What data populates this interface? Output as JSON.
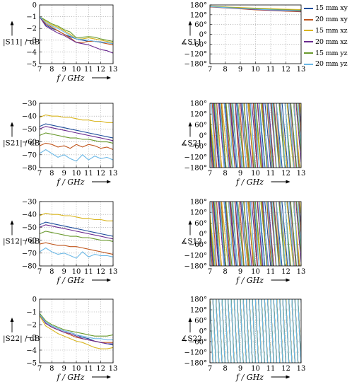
{
  "legend": [
    {
      "label": "15 mm xy",
      "color": "#1f4e9c"
    },
    {
      "label": "20 mm xy",
      "color": "#c0561d"
    },
    {
      "label": "15 mm xz",
      "color": "#d9b51f"
    },
    {
      "label": "20 mm xz",
      "color": "#6a2a8f"
    },
    {
      "label": "15 mm yz",
      "color": "#6a9a2e"
    },
    {
      "label": "20 mm yz",
      "color": "#6cb8e6"
    }
  ],
  "chart_data": [
    {
      "type": "line",
      "id": "s11_mag",
      "ylabel": "|S11| / dB",
      "xlabel": "f / GHz",
      "xlim": [
        7,
        13
      ],
      "ylim": [
        -5,
        0
      ],
      "grid": true,
      "xticks": [
        "7",
        "8",
        "9",
        "10",
        "11",
        "12",
        "13"
      ],
      "yticks": [
        "0",
        "−1",
        "−2",
        "−3",
        "−4",
        "−5"
      ],
      "x": [
        7,
        7.5,
        8,
        8.5,
        9,
        9.5,
        10,
        10.5,
        11,
        11.5,
        12,
        12.5,
        13
      ],
      "series": [
        {
          "name": "15 mm xy",
          "values": [
            -1.0,
            -1.7,
            -2.0,
            -2.2,
            -2.5,
            -2.7,
            -2.9,
            -3.0,
            -3.1,
            -3.1,
            -3.15,
            -3.2,
            -3.3
          ]
        },
        {
          "name": "20 mm xy",
          "values": [
            -1.0,
            -1.6,
            -1.9,
            -2.2,
            -2.5,
            -2.8,
            -3.2,
            -3.2,
            -3.1,
            -3.1,
            -3.2,
            -3.3,
            -3.4
          ]
        },
        {
          "name": "15 mm xz",
          "values": [
            -1.0,
            -1.4,
            -1.7,
            -1.9,
            -2.2,
            -2.5,
            -2.9,
            -2.9,
            -2.8,
            -2.9,
            -3.0,
            -3.1,
            -3.2
          ]
        },
        {
          "name": "20 mm xz",
          "values": [
            -1.0,
            -1.8,
            -2.1,
            -2.4,
            -2.6,
            -2.9,
            -3.2,
            -3.3,
            -3.4,
            -3.6,
            -3.8,
            -3.9,
            -4.1
          ]
        },
        {
          "name": "15 mm yz",
          "values": [
            -1.0,
            -1.3,
            -1.6,
            -1.8,
            -2.1,
            -2.3,
            -2.8,
            -2.75,
            -2.7,
            -2.75,
            -2.9,
            -3.0,
            -3.1
          ]
        },
        {
          "name": "20 mm yz",
          "values": [
            -1.0,
            -1.5,
            -1.8,
            -2.0,
            -2.3,
            -2.6,
            -2.9,
            -2.95,
            -3.0,
            -3.1,
            -3.2,
            -3.2,
            -3.3
          ]
        }
      ]
    },
    {
      "type": "line",
      "id": "s11_phase",
      "ylabel": "∡S11",
      "xlabel": "",
      "xlim": [
        7,
        13
      ],
      "ylim": [
        -180,
        180
      ],
      "grid": true,
      "xticks": [
        "7",
        "8",
        "9",
        "10",
        "11",
        "12",
        "13"
      ],
      "yticks": [
        "180°",
        "120°",
        "60°",
        "0°",
        "−60°",
        "−120°",
        "−180°"
      ],
      "x": [
        7,
        8,
        9,
        10,
        11,
        12,
        13
      ],
      "series": [
        {
          "name": "15 mm xy",
          "values": [
            170,
            165,
            160,
            155,
            150,
            148,
            145
          ]
        },
        {
          "name": "20 mm xy",
          "values": [
            168,
            162,
            156,
            150,
            146,
            142,
            138
          ]
        },
        {
          "name": "15 mm xz",
          "values": [
            172,
            168,
            164,
            160,
            157,
            154,
            152
          ]
        },
        {
          "name": "20 mm xz",
          "values": [
            169,
            163,
            158,
            152,
            148,
            145,
            141
          ]
        },
        {
          "name": "15 mm yz",
          "values": [
            171,
            166,
            161,
            157,
            153,
            150,
            147
          ]
        },
        {
          "name": "20 mm yz",
          "values": [
            170,
            164,
            159,
            154,
            150,
            147,
            143
          ]
        }
      ]
    },
    {
      "type": "line",
      "id": "s21_mag",
      "ylabel": "|S21| / dB",
      "xlabel": "f / GHz",
      "xlim": [
        7,
        13
      ],
      "ylim": [
        -80,
        -30
      ],
      "grid": true,
      "xticks": [
        "7",
        "8",
        "9",
        "10",
        "11",
        "12",
        "13"
      ],
      "yticks": [
        "−30",
        "−40",
        "−50",
        "−60",
        "−70",
        "−80"
      ],
      "x": [
        7,
        7.5,
        8,
        8.5,
        9,
        9.5,
        10,
        10.5,
        11,
        11.5,
        12,
        12.5,
        13
      ],
      "series": [
        {
          "name": "15 mm xy",
          "values": [
            -48,
            -46,
            -47,
            -48,
            -49,
            -50,
            -51,
            -52,
            -53,
            -54,
            -55,
            -56,
            -57
          ]
        },
        {
          "name": "20 mm xy",
          "values": [
            -63,
            -61,
            -62,
            -64,
            -63,
            -65,
            -62,
            -64,
            -62,
            -63,
            -65,
            -64,
            -66
          ]
        },
        {
          "name": "15 mm xz",
          "values": [
            -41,
            -39,
            -40,
            -40,
            -41,
            -41,
            -42,
            -43,
            -43,
            -44,
            -44,
            -45,
            -45
          ]
        },
        {
          "name": "20 mm xz",
          "values": [
            -50,
            -48,
            -49,
            -50,
            -51,
            -52,
            -53,
            -54,
            -55,
            -56,
            -57,
            -58,
            -59
          ]
        },
        {
          "name": "15 mm yz",
          "values": [
            -55,
            -53,
            -54,
            -55,
            -56,
            -57,
            -57,
            -58,
            -58,
            -59,
            -60,
            -60,
            -61
          ]
        },
        {
          "name": "20 mm yz",
          "values": [
            -69,
            -66,
            -69,
            -72,
            -70,
            -73,
            -75,
            -70,
            -74,
            -71,
            -73,
            -72,
            -74
          ]
        }
      ]
    },
    {
      "type": "line",
      "id": "s21_phase",
      "ylabel": "∡S21",
      "xlabel": "f / GHz",
      "xlim": [
        7,
        13
      ],
      "ylim": [
        -180,
        180
      ],
      "grid": true,
      "xticks": [
        "7",
        "8",
        "9",
        "10",
        "11",
        "12",
        "13"
      ],
      "yticks": [
        "180°",
        "120°",
        "60°",
        "0°",
        "−60°",
        "−120°",
        "−180°"
      ],
      "series": [
        {
          "name": "15 mm xy",
          "slope": -160,
          "phase0": 60
        },
        {
          "name": "20 mm xy",
          "slope": -200,
          "phase0": 0
        },
        {
          "name": "15 mm xz",
          "slope": -140,
          "phase0": 120
        },
        {
          "name": "20 mm xz",
          "slope": -165,
          "phase0": 30
        },
        {
          "name": "15 mm yz",
          "slope": -155,
          "phase0": 90
        },
        {
          "name": "20 mm yz",
          "slope": -210,
          "phase0": -60
        }
      ]
    },
    {
      "type": "line",
      "id": "s12_mag",
      "ylabel": "|S12| / dB",
      "xlabel": "f / GHz",
      "xlim": [
        7,
        13
      ],
      "ylim": [
        -80,
        -30
      ],
      "grid": true,
      "xticks": [
        "7",
        "8",
        "9",
        "10",
        "11",
        "12",
        "13"
      ],
      "yticks": [
        "−30",
        "−40",
        "−50",
        "−60",
        "−70",
        "−80"
      ],
      "x": [
        7,
        7.5,
        8,
        8.5,
        9,
        9.5,
        10,
        10.5,
        11,
        11.5,
        12,
        12.5,
        13
      ],
      "series": [
        {
          "name": "15 mm xy",
          "values": [
            -48,
            -46,
            -47,
            -48,
            -49,
            -50,
            -51,
            -52,
            -53,
            -54,
            -55,
            -56,
            -57
          ]
        },
        {
          "name": "20 mm xy",
          "values": [
            -63,
            -62,
            -63,
            -64,
            -64,
            -65,
            -65,
            -66,
            -67,
            -68,
            -69,
            -70,
            -71
          ]
        },
        {
          "name": "15 mm xz",
          "values": [
            -41,
            -39,
            -40,
            -40,
            -41,
            -41,
            -42,
            -43,
            -43,
            -44,
            -44,
            -45,
            -45
          ]
        },
        {
          "name": "20 mm xz",
          "values": [
            -50,
            -48,
            -49,
            -50,
            -51,
            -52,
            -53,
            -54,
            -55,
            -56,
            -57,
            -58,
            -59
          ]
        },
        {
          "name": "15 mm yz",
          "values": [
            -55,
            -53,
            -54,
            -55,
            -56,
            -57,
            -57,
            -58,
            -58,
            -59,
            -60,
            -60,
            -61
          ]
        },
        {
          "name": "20 mm yz",
          "values": [
            -69,
            -66,
            -69,
            -71,
            -70,
            -72,
            -74,
            -69,
            -73,
            -71,
            -72,
            -72,
            -73
          ]
        }
      ]
    },
    {
      "type": "line",
      "id": "s12_phase",
      "ylabel": "∡S12",
      "xlabel": "f / GHz",
      "xlim": [
        7,
        13
      ],
      "ylim": [
        -180,
        180
      ],
      "grid": true,
      "xticks": [
        "7",
        "8",
        "9",
        "10",
        "11",
        "12",
        "13"
      ],
      "yticks": [
        "180°",
        "120°",
        "60°",
        "0°",
        "−60°",
        "−120°",
        "−180°"
      ],
      "series": [
        {
          "name": "15 mm xy",
          "slope": -160,
          "phase0": 50
        },
        {
          "name": "20 mm xy",
          "slope": -200,
          "phase0": -10
        },
        {
          "name": "15 mm xz",
          "slope": -140,
          "phase0": 110
        },
        {
          "name": "20 mm xz",
          "slope": -165,
          "phase0": 20
        },
        {
          "name": "15 mm yz",
          "slope": -155,
          "phase0": 80
        },
        {
          "name": "20 mm yz",
          "slope": -210,
          "phase0": -70
        }
      ]
    },
    {
      "type": "line",
      "id": "s22_mag",
      "ylabel": "|S22| / dB",
      "xlabel": "f / GHz",
      "xlim": [
        7,
        13
      ],
      "ylim": [
        -5,
        0
      ],
      "grid": true,
      "xticks": [
        "7",
        "8",
        "9",
        "10",
        "11",
        "12",
        "13"
      ],
      "yticks": [
        "0",
        "−1",
        "−2",
        "−3",
        "−4",
        "−5"
      ],
      "x": [
        7,
        7.5,
        8,
        8.5,
        9,
        9.5,
        10,
        10.5,
        11,
        11.5,
        12,
        12.5,
        13
      ],
      "series": [
        {
          "name": "15 mm xy",
          "values": [
            -1.2,
            -1.8,
            -2.1,
            -2.3,
            -2.5,
            -2.6,
            -2.8,
            -3.0,
            -3.1,
            -3.3,
            -3.4,
            -3.5,
            -3.6
          ]
        },
        {
          "name": "20 mm xy",
          "values": [
            -1.2,
            -1.9,
            -2.2,
            -2.4,
            -2.6,
            -2.8,
            -3.0,
            -3.1,
            -3.2,
            -3.3,
            -3.4,
            -3.4,
            -3.4
          ]
        },
        {
          "name": "15 mm xz",
          "values": [
            -1.3,
            -2.1,
            -2.4,
            -2.7,
            -2.9,
            -3.1,
            -3.3,
            -3.4,
            -3.6,
            -3.8,
            -3.9,
            -3.9,
            -3.8
          ]
        },
        {
          "name": "20 mm xz",
          "values": [
            -1.2,
            -1.9,
            -2.2,
            -2.4,
            -2.6,
            -2.7,
            -2.9,
            -3.1,
            -3.2,
            -3.3,
            -3.4,
            -3.5,
            -3.5
          ]
        },
        {
          "name": "15 mm yz",
          "values": [
            -1.1,
            -1.7,
            -2.0,
            -2.2,
            -2.4,
            -2.5,
            -2.6,
            -2.7,
            -2.8,
            -2.9,
            -2.9,
            -2.9,
            -2.8
          ]
        },
        {
          "name": "20 mm yz",
          "values": [
            -1.2,
            -1.8,
            -2.1,
            -2.3,
            -2.5,
            -2.6,
            -2.8,
            -2.9,
            -3.0,
            -3.1,
            -3.1,
            -3.2,
            -3.2
          ]
        }
      ]
    },
    {
      "type": "line",
      "id": "s22_phase",
      "ylabel": "∡S22",
      "xlabel": "f / GHz",
      "xlim": [
        7,
        13
      ],
      "ylim": [
        -180,
        180
      ],
      "grid": true,
      "xticks": [
        "7",
        "8",
        "9",
        "10",
        "11",
        "12",
        "13"
      ],
      "yticks": [
        "180°",
        "120°",
        "60°",
        "0°",
        "−60°",
        "−120°",
        "−180°"
      ],
      "series": [
        {
          "name": "15 mm xy",
          "slope": -300,
          "phase0": 170
        },
        {
          "name": "20 mm xy",
          "slope": -300,
          "phase0": 165
        },
        {
          "name": "15 mm xz",
          "slope": -300,
          "phase0": 172
        },
        {
          "name": "20 mm xz",
          "slope": -300,
          "phase0": 168
        },
        {
          "name": "15 mm yz",
          "slope": -300,
          "phase0": 175
        },
        {
          "name": "20 mm yz",
          "slope": -300,
          "phase0": 160
        }
      ]
    }
  ]
}
